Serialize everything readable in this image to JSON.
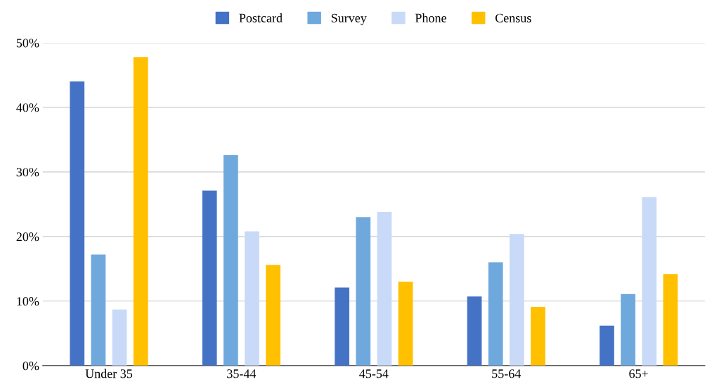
{
  "chart_data": {
    "type": "bar",
    "categories": [
      "Under 35",
      "35-44",
      "45-54",
      "55-64",
      "65+"
    ],
    "series": [
      {
        "name": "Postcard",
        "color": "#4472c4",
        "values": [
          44.0,
          27.1,
          12.1,
          10.7,
          6.2
        ]
      },
      {
        "name": "Survey",
        "color": "#6fa8dc",
        "values": [
          17.2,
          32.6,
          23.0,
          16.0,
          11.1
        ]
      },
      {
        "name": "Phone",
        "color": "#c9daf8",
        "values": [
          8.7,
          20.8,
          23.8,
          20.4,
          26.1
        ]
      },
      {
        "name": "Census",
        "color": "#ffc000",
        "values": [
          47.8,
          15.6,
          13.0,
          9.1,
          14.2
        ]
      }
    ],
    "ylim": [
      0,
      50
    ],
    "yticks": [
      {
        "value": 0,
        "label": "0%"
      },
      {
        "value": 10,
        "label": "10%"
      },
      {
        "value": 20,
        "label": "20%"
      },
      {
        "value": 30,
        "label": "30%"
      },
      {
        "value": 40,
        "label": "40%"
      },
      {
        "value": 50,
        "label": "50%"
      }
    ],
    "grid": "y",
    "legend": "top"
  }
}
